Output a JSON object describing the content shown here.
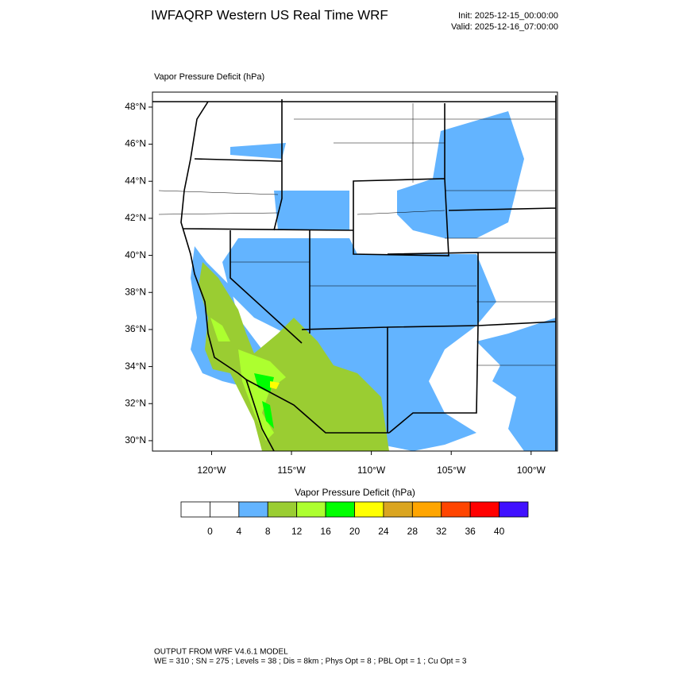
{
  "header": {
    "title": "IWFAQRP Western US Real Time WRF",
    "init": "Init: 2025-12-15_00:00:00",
    "valid": "Valid: 2025-12-16_07:00:00"
  },
  "map": {
    "subtitle": "Vapor Pressure Deficit   (hPa)",
    "xlim": [
      -123.7,
      -98.35
    ],
    "ylim": [
      29.44,
      48.81
    ],
    "yticks": [
      {
        "value": 30,
        "label": "30°N"
      },
      {
        "value": 32,
        "label": "32°N"
      },
      {
        "value": 34,
        "label": "34°N"
      },
      {
        "value": 36,
        "label": "36°N"
      },
      {
        "value": 38,
        "label": "38°N"
      },
      {
        "value": 40,
        "label": "40°N"
      },
      {
        "value": 42,
        "label": "42°N"
      },
      {
        "value": 44,
        "label": "44°N"
      },
      {
        "value": 46,
        "label": "46°N"
      },
      {
        "value": 48,
        "label": "48°N"
      }
    ],
    "xticks": [
      {
        "value": -120,
        "label": "120°W"
      },
      {
        "value": -115,
        "label": "115°W"
      },
      {
        "value": -110,
        "label": "110°W"
      },
      {
        "value": -105,
        "label": "105°W"
      },
      {
        "value": -100,
        "label": "100°W"
      }
    ]
  },
  "colorbar": {
    "title": "Vapor Pressure Deficit  (hPa)",
    "levels": [
      0,
      4,
      8,
      12,
      16,
      20,
      24,
      28,
      32,
      36,
      40
    ],
    "colors": [
      "#ffffff",
      "#ffffff",
      "#63b4ff",
      "#9acd32",
      "#adff2f",
      "#00ff00",
      "#ffff00",
      "#daa520",
      "#ffa500",
      "#ff4500",
      "#ff0000",
      "#4010ff"
    ]
  },
  "footer": {
    "lines": [
      "OUTPUT FROM WRF V4.6.1 MODEL",
      "WE = 310 ; SN = 275 ; Levels = 38 ; Dis = 8km ; Phys Opt = 8 ; PBL Opt = 1 ; Cu Opt = 3"
    ]
  }
}
